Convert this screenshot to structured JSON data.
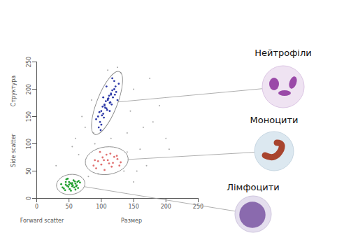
{
  "chart_data": {
    "type": "scatter",
    "x_label": "Forward scatter",
    "x_sublabel": "Размер",
    "y_label": "Side scatter",
    "y_sublabel": "Структура",
    "xlim": [
      0,
      250
    ],
    "ylim": [
      0,
      250
    ],
    "xticks": [
      0,
      50,
      100,
      150,
      200,
      250
    ],
    "yticks": [
      0,
      50,
      100,
      150,
      200,
      250
    ],
    "grid": false,
    "series": [
      {
        "color": "#a8a8a8",
        "marker": "dot",
        "x": [
          30,
          60,
          80,
          140,
          160,
          180,
          150,
          70,
          90,
          130,
          170,
          200,
          145,
          85,
          110,
          65,
          155,
          190,
          75,
          135,
          125,
          165,
          95,
          205,
          55,
          175,
          140,
          115,
          88,
          150
        ],
        "values": [
          60,
          110,
          40,
          120,
          90,
          140,
          200,
          150,
          100,
          230,
          60,
          110,
          160,
          180,
          235,
          80,
          50,
          170,
          130,
          50,
          240,
          130,
          45,
          90,
          95,
          220,
          85,
          110,
          120,
          30
        ]
      },
      {
        "name": "Нейтрофіли",
        "color": "#2e3aa8",
        "marker": "dot",
        "x": [
          95,
          100,
          105,
          110,
          115,
          120,
          98,
          103,
          108,
          113,
          118,
          123,
          92,
          97,
          102,
          107,
          112,
          117,
          122,
          127,
          100,
          105,
          110,
          115,
          120,
          104,
          109,
          114,
          96,
          101,
          106,
          111,
          116,
          121,
          99,
          108,
          117,
          113,
          103,
          125
        ],
        "values": [
          150,
          160,
          170,
          180,
          190,
          200,
          140,
          155,
          165,
          175,
          185,
          195,
          145,
          158,
          168,
          178,
          188,
          198,
          205,
          210,
          135,
          172,
          182,
          192,
          215,
          148,
          162,
          176,
          130,
          152,
          166,
          183,
          172,
          190,
          125,
          205,
          220,
          160,
          185,
          180
        ]
      },
      {
        "name": "Моноцити",
        "color": "#e07070",
        "marker": "dot",
        "x": [
          88,
          95,
          102,
          110,
          118,
          125,
          92,
          100,
          108,
          116,
          124,
          130,
          98,
          105,
          112,
          120,
          90,
          128,
          104,
          114
        ],
        "values": [
          60,
          68,
          75,
          70,
          65,
          72,
          55,
          62,
          80,
          58,
          78,
          66,
          85,
          52,
          64,
          76,
          70,
          60,
          70,
          82
        ]
      },
      {
        "name": "Лімфоцити",
        "color": "#22a030",
        "marker": "dot",
        "x": [
          40,
          45,
          50,
          55,
          60,
          65,
          42,
          47,
          52,
          57,
          62,
          67,
          44,
          49,
          54,
          59,
          64,
          46,
          51,
          56,
          61,
          38,
          48,
          53,
          58,
          63,
          50,
          55,
          45,
          60
        ],
        "values": [
          20,
          25,
          30,
          22,
          27,
          32,
          18,
          23,
          28,
          33,
          24,
          29,
          15,
          21,
          26,
          31,
          19,
          35,
          17,
          24,
          22,
          26,
          36,
          14,
          20,
          30,
          25,
          28,
          30,
          16
        ]
      }
    ]
  }
}
